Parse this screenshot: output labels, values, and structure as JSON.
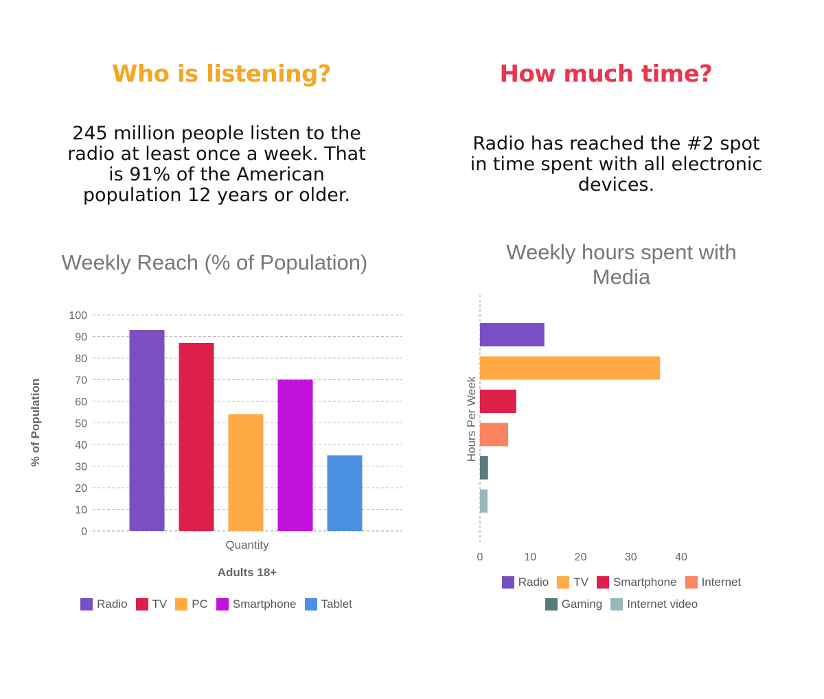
{
  "left_panel": {
    "heading": "Who is listening?",
    "description": "245 million people listen to the radio at least once a week. That is 91% of the American population 12 years or older."
  },
  "right_panel": {
    "heading": "How much time?",
    "description": "Radio has reached the #2 spot in time spent with all electronic devices."
  },
  "colors": {
    "heading_left": "#f5a623",
    "heading_right": "#e8364f"
  },
  "chart_data": [
    {
      "type": "bar",
      "title": "Weekly Reach (% of Population)",
      "xlabel": "Quantity",
      "ylabel": "% of Population",
      "category_label": "Adults 18+",
      "ylim": [
        0,
        100
      ],
      "yticks": [
        0,
        10,
        20,
        30,
        40,
        50,
        60,
        70,
        80,
        90,
        100
      ],
      "grid": true,
      "legend_position": "bottom",
      "series": [
        {
          "name": "Radio",
          "values": [
            93
          ],
          "color": "#7b4fc4"
        },
        {
          "name": "TV",
          "values": [
            87
          ],
          "color": "#de1f4a"
        },
        {
          "name": "PC",
          "values": [
            54
          ],
          "color": "#ffaa45"
        },
        {
          "name": "Smartphone",
          "values": [
            70
          ],
          "color": "#c212dc"
        },
        {
          "name": "Tablet",
          "values": [
            35
          ],
          "color": "#4b90e2"
        }
      ]
    },
    {
      "type": "bar",
      "orientation": "horizontal",
      "title": "Weekly hours spent with Media",
      "ylabel": "Hours Per Week",
      "xlim": [
        0,
        40
      ],
      "xticks": [
        0,
        10,
        20,
        30,
        40
      ],
      "legend_position": "bottom",
      "series": [
        {
          "name": "Radio",
          "values": [
            12.8
          ],
          "color": "#7b4fc4"
        },
        {
          "name": "TV",
          "values": [
            35.8
          ],
          "color": "#ffaa45"
        },
        {
          "name": "Smartphone",
          "values": [
            7.2
          ],
          "color": "#de1f4a"
        },
        {
          "name": "Internet",
          "values": [
            5.6
          ],
          "color": "#fa8560"
        },
        {
          "name": "Gaming",
          "values": [
            1.6
          ],
          "color": "#5a7a7c"
        },
        {
          "name": "Internet video",
          "values": [
            1.5
          ],
          "color": "#98b8bc"
        }
      ]
    }
  ]
}
